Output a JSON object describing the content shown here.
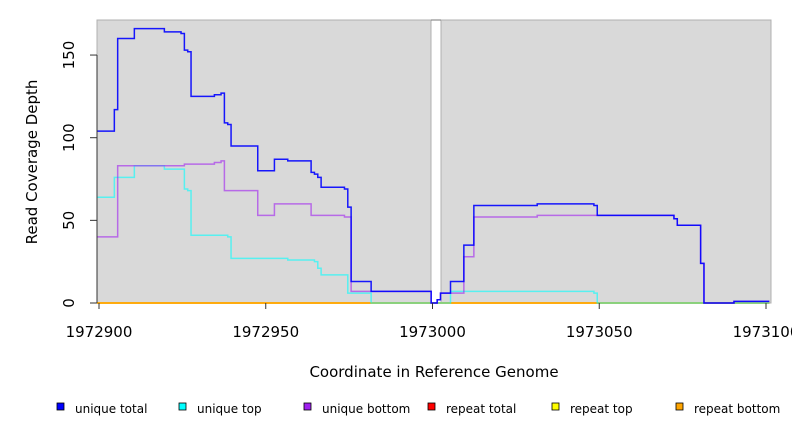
{
  "chart_data": {
    "type": "line",
    "step": true,
    "xlabel": "Coordinate in Reference Genome",
    "ylabel": "Read Coverage Depth",
    "xlim": [
      1972899.4,
      1973101.0
    ],
    "ylim": [
      0,
      171
    ],
    "gap": [
      1972999.6,
      1973002.6
    ],
    "xticks": [
      1972900,
      1972950,
      1973000,
      1973050,
      1973100
    ],
    "xtick_labels": [
      "1972900",
      "1972950",
      "1973000",
      "1973050",
      "1973100"
    ],
    "yticks": [
      0,
      50,
      100,
      150
    ],
    "ytick_labels": [
      "0",
      "50",
      "100",
      "150"
    ],
    "legend_position": "bottom",
    "series": [
      {
        "name": "repeat total",
        "color": "#ff0000",
        "steps": [
          [
            1972899.4,
            0
          ],
          [
            1973101,
            0
          ]
        ]
      },
      {
        "name": "repeat top",
        "color": "#ffff00",
        "steps": [
          [
            1972899.4,
            0
          ],
          [
            1973101,
            0
          ]
        ]
      },
      {
        "name": "repeat bottom",
        "color": "#ffa500",
        "steps": [
          [
            1972899.4,
            0
          ],
          [
            1973101,
            0
          ]
        ]
      },
      {
        "name": "unique top",
        "color": "#00ffff",
        "steps": [
          [
            1972899.4,
            64
          ],
          [
            1972904.6,
            76
          ],
          [
            1972910.6,
            83
          ],
          [
            1972919.6,
            81
          ],
          [
            1972925.6,
            69
          ],
          [
            1972926.6,
            68
          ],
          [
            1972927.6,
            41
          ],
          [
            1972938.6,
            40
          ],
          [
            1972939.6,
            27
          ],
          [
            1972956.6,
            26
          ],
          [
            1972964.6,
            25
          ],
          [
            1972965.6,
            21
          ],
          [
            1972966.6,
            17
          ],
          [
            1972974.6,
            6
          ],
          [
            1972981.6,
            0
          ],
          [
            1973005.4,
            7
          ],
          [
            1973048.4,
            6
          ],
          [
            1973049.4,
            0
          ],
          [
            1973101,
            0
          ]
        ]
      },
      {
        "name": "unique bottom",
        "color": "#a020f0",
        "steps": [
          [
            1972899.4,
            40
          ],
          [
            1972905.6,
            83
          ],
          [
            1972925.6,
            84
          ],
          [
            1972934.6,
            85
          ],
          [
            1972936.6,
            86
          ],
          [
            1972937.6,
            68
          ],
          [
            1972947.6,
            53
          ],
          [
            1972952.6,
            60
          ],
          [
            1972963.6,
            53
          ],
          [
            1972973.6,
            52
          ],
          [
            1972975.6,
            7
          ],
          [
            1972999.6,
            0
          ],
          [
            1973001.4,
            2
          ],
          [
            1973002.4,
            6
          ],
          [
            1973009.4,
            28
          ],
          [
            1973012.4,
            52
          ],
          [
            1973031.4,
            53
          ],
          [
            1973072.4,
            51
          ],
          [
            1973073.4,
            47
          ],
          [
            1973080.4,
            24
          ],
          [
            1973081.4,
            0
          ],
          [
            1973090.4,
            1
          ],
          [
            1973101,
            1
          ]
        ]
      },
      {
        "name": "unique total",
        "color": "#0000ff",
        "steps": [
          [
            1972899.4,
            104
          ],
          [
            1972904.6,
            117
          ],
          [
            1972905.6,
            160
          ],
          [
            1972910.6,
            166
          ],
          [
            1972919.6,
            164
          ],
          [
            1972924.6,
            163
          ],
          [
            1972925.6,
            153
          ],
          [
            1972926.6,
            152
          ],
          [
            1972927.6,
            125
          ],
          [
            1972934.6,
            126
          ],
          [
            1972936.6,
            127
          ],
          [
            1972937.6,
            109
          ],
          [
            1972938.6,
            108
          ],
          [
            1972939.6,
            95
          ],
          [
            1972947.6,
            80
          ],
          [
            1972952.6,
            87
          ],
          [
            1972956.6,
            86
          ],
          [
            1972963.6,
            79
          ],
          [
            1972964.6,
            78
          ],
          [
            1972965.6,
            76
          ],
          [
            1972966.6,
            70
          ],
          [
            1972973.6,
            69
          ],
          [
            1972974.6,
            58
          ],
          [
            1972975.6,
            13
          ],
          [
            1972981.6,
            7
          ],
          [
            1972999.6,
            0
          ],
          [
            1973001.4,
            2
          ],
          [
            1973002.4,
            6
          ],
          [
            1973005.4,
            13
          ],
          [
            1973009.4,
            35
          ],
          [
            1973012.4,
            59
          ],
          [
            1973031.4,
            60
          ],
          [
            1973048.4,
            59
          ],
          [
            1973049.4,
            53
          ],
          [
            1973072.4,
            51
          ],
          [
            1973073.4,
            47
          ],
          [
            1973080.4,
            24
          ],
          [
            1973081.4,
            0
          ],
          [
            1973090.4,
            1
          ],
          [
            1973101,
            1
          ]
        ]
      }
    ],
    "legend": [
      {
        "label": "unique total",
        "color": "#0000ff"
      },
      {
        "label": "unique top",
        "color": "#00ffff"
      },
      {
        "label": "unique bottom",
        "color": "#a020f0"
      },
      {
        "label": "repeat total",
        "color": "#ff0000"
      },
      {
        "label": "repeat top",
        "color": "#ffff00"
      },
      {
        "label": "repeat bottom",
        "color": "#ffa500"
      }
    ]
  }
}
